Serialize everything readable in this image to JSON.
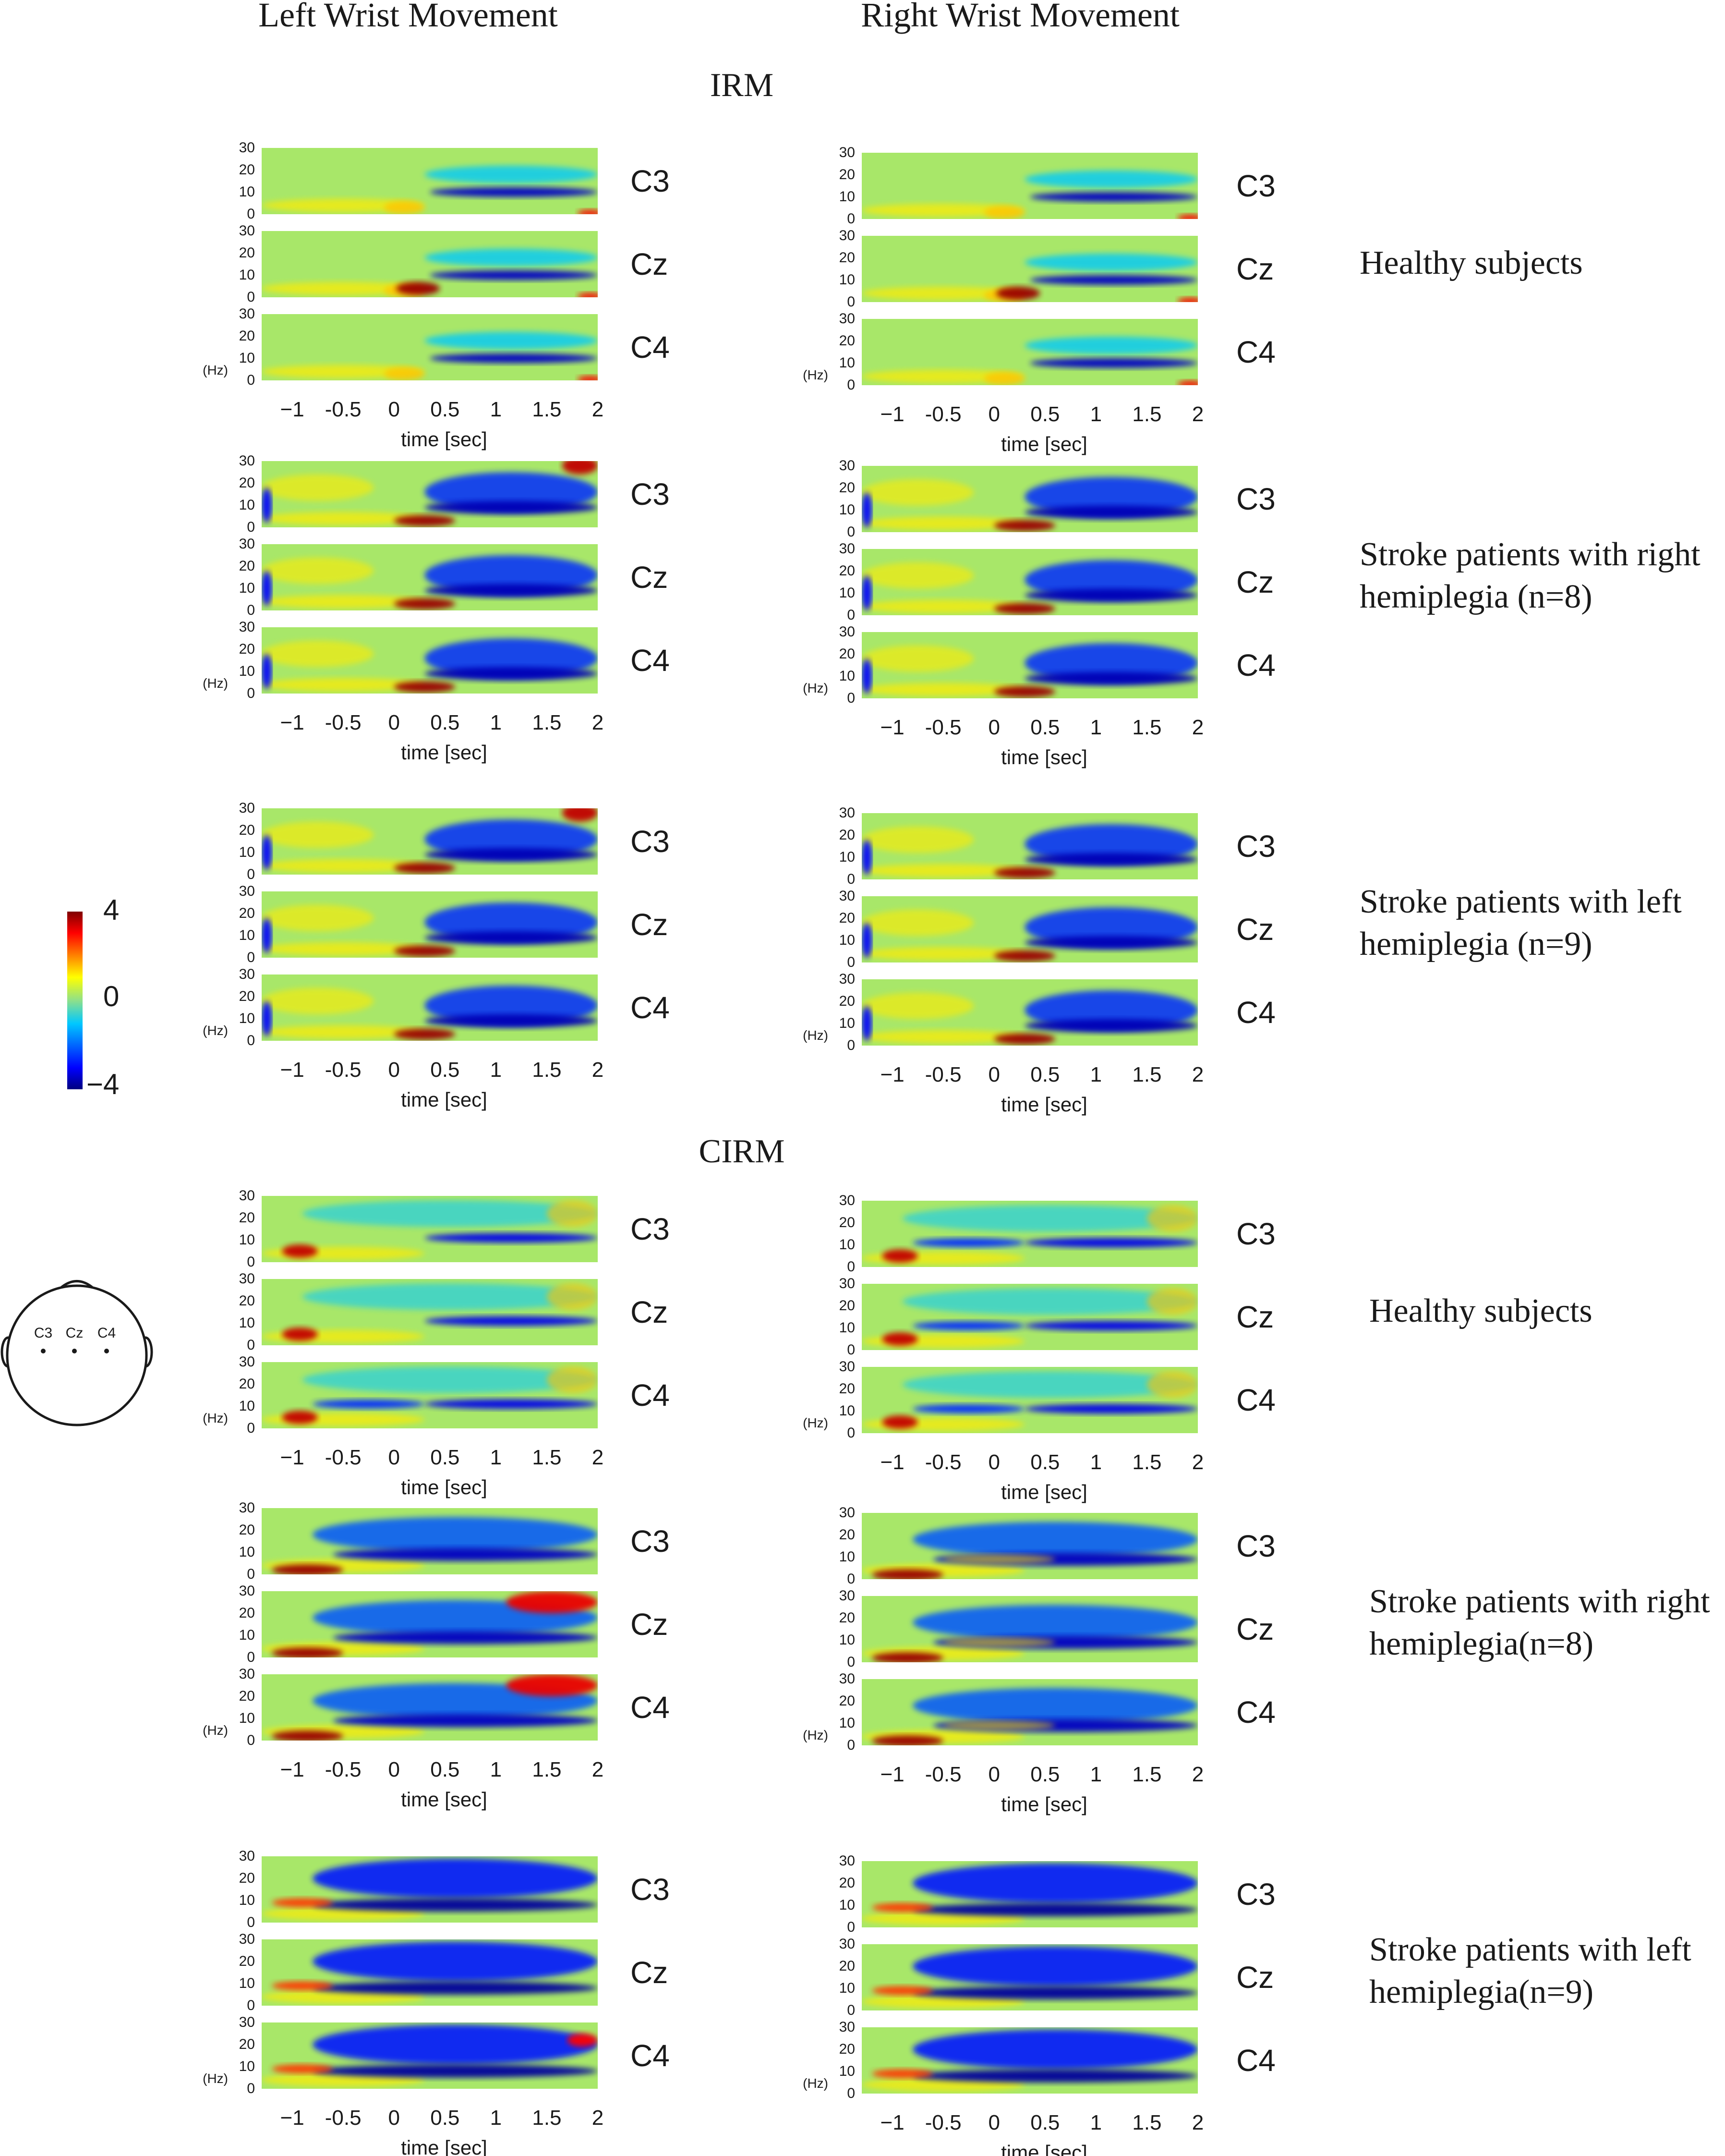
{
  "figure": {
    "column_titles": {
      "left": "Left Wrist Movement",
      "right": "Right Wrist Movement"
    },
    "sections": [
      {
        "title": "IRM",
        "groups": [
          {
            "label_lines": [
              "Healthy subjects"
            ],
            "pattern": "healthy-irm"
          },
          {
            "label_lines": [
              "Stroke patients with right",
              "hemiplegia (n=8)"
            ],
            "pattern": "stroke-irm"
          },
          {
            "label_lines": [
              "Stroke patients with left",
              "hemiplegia (n=9)"
            ],
            "pattern": "stroke-irm"
          }
        ]
      },
      {
        "title": "CIRM",
        "groups": [
          {
            "label_lines": [
              "Healthy subjects"
            ],
            "pattern": "healthy-cirm"
          },
          {
            "label_lines": [
              "Stroke patients with right",
              "hemiplegia(n=8)"
            ],
            "pattern": "stroke-cirm"
          },
          {
            "label_lines": [
              "Stroke patients with left",
              "hemiplegia(n=9)"
            ],
            "pattern": "stroke-cirm-left"
          }
        ]
      }
    ],
    "channels": [
      "C3",
      "Cz",
      "C4"
    ],
    "head_diagram": {
      "electrodes": [
        "C3",
        "Cz",
        "C4"
      ]
    },
    "colorbar": {
      "max_label": "4",
      "mid_label": "0",
      "min_label": "−4"
    }
  },
  "chart_data": {
    "type": "heatmap",
    "description": "Time-frequency maps (event-related spectral perturbation) per channel; 6 groups x 2 movement sides x 3 channels",
    "x": {
      "label": "time  [sec]",
      "range": [
        -1.3,
        2.0
      ],
      "ticks": [
        -1,
        -0.5,
        0,
        0.5,
        1,
        1.5,
        2
      ],
      "tick_labels": [
        "−1",
        "-0.5",
        "0",
        "0.5",
        "1",
        "1.5",
        "2"
      ]
    },
    "y": {
      "unit_label": "(Hz)",
      "range": [
        0,
        30
      ],
      "ticks": [
        0,
        10,
        20,
        30
      ],
      "tick_labels": [
        "0",
        "10",
        "20",
        "30"
      ]
    },
    "color_scale": {
      "min": -4,
      "max": 4,
      "colormap": "jet"
    },
    "sides": [
      "Left Wrist Movement",
      "Right Wrist Movement"
    ],
    "groups": [
      "IRM Healthy subjects",
      "IRM Stroke patients with right hemiplegia (n=8)",
      "IRM Stroke patients with left hemiplegia (n=9)",
      "CIRM Healthy subjects",
      "CIRM Stroke patients with right hemiplegia(n=8)",
      "CIRM Stroke patients with left hemiplegia(n=9)"
    ]
  }
}
